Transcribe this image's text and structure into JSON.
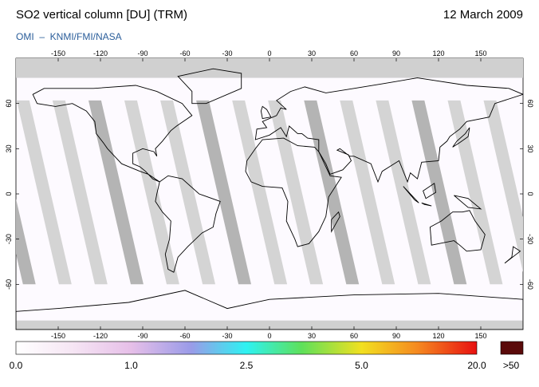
{
  "header": {
    "title": "SO2 vertical column [DU] (TRM)",
    "date": "12 March 2009",
    "subtitle": "OMI  –  KNMI/FMI/NASA"
  },
  "map": {
    "lon_ticks": [
      -150,
      -120,
      -90,
      -60,
      -30,
      0,
      30,
      60,
      90,
      120,
      150
    ],
    "lat_ticks": [
      60,
      30,
      0,
      -30,
      -60
    ]
  },
  "colorbar": {
    "labels": [
      "0.0",
      "1.0",
      "2.5",
      "5.0",
      "20.0"
    ],
    "overflow_label": ">50"
  }
}
